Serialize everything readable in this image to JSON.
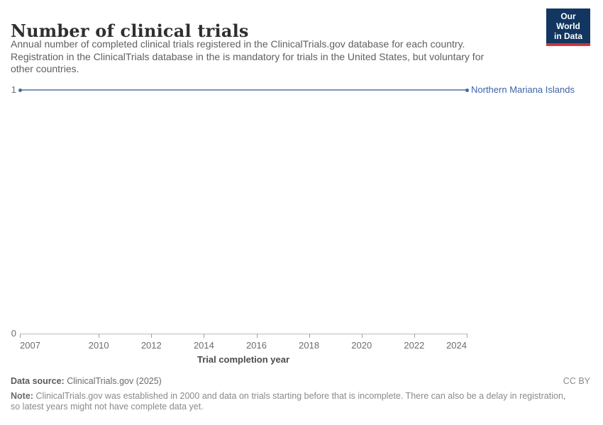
{
  "header": {
    "title": "Number of clinical trials",
    "subtitle_lines": [
      "Annual number of completed clinical trials registered in the ClinicalTrials.gov database for each country.",
      "Registration in the ClinicalTrials database in the is mandatory for trials in the United States, but voluntary for",
      "other countries."
    ],
    "logo": {
      "line1": "Our World",
      "line2": "in Data",
      "bg_color": "#12365f",
      "stripe_color": "#d0343c"
    }
  },
  "chart_data": {
    "type": "line",
    "title": "Number of clinical trials",
    "xlabel": "Trial completion year",
    "ylabel": "",
    "xlim": [
      2007,
      2024
    ],
    "ylim": [
      0,
      1
    ],
    "x_ticks": [
      2007,
      2010,
      2012,
      2014,
      2016,
      2018,
      2020,
      2022,
      2024
    ],
    "y_ticks": [
      1,
      0
    ],
    "grid": false,
    "legend_position": "end-of-line-label",
    "series": [
      {
        "name": "Northern Mariana Islands",
        "x": [
          2007,
          2008,
          2009,
          2010,
          2011,
          2012,
          2013,
          2014,
          2015,
          2016,
          2017,
          2018,
          2019,
          2020,
          2021,
          2022,
          2023,
          2024
        ],
        "values": [
          1,
          1,
          1,
          1,
          1,
          1,
          1,
          1,
          1,
          1,
          1,
          1,
          1,
          1,
          1,
          1,
          1,
          1
        ],
        "line_color": "#7e93bb",
        "marker_color": "#4769a6",
        "label_color": "#3d64a6"
      }
    ],
    "colors": {
      "axis_line": "#bdbdbd",
      "tick": "#a3a3a3",
      "tick_label": "#6d6d6d"
    }
  },
  "footer": {
    "data_source_label": "Data source:",
    "data_source_value": "ClinicalTrials.gov (2025)",
    "license": "CC BY",
    "note_label": "Note:",
    "note_lines": [
      "ClinicalTrials.gov was established in 2000 and data on trials starting before that is incomplete. There can also be a delay in registration,",
      "so latest years might not have complete data yet."
    ]
  }
}
